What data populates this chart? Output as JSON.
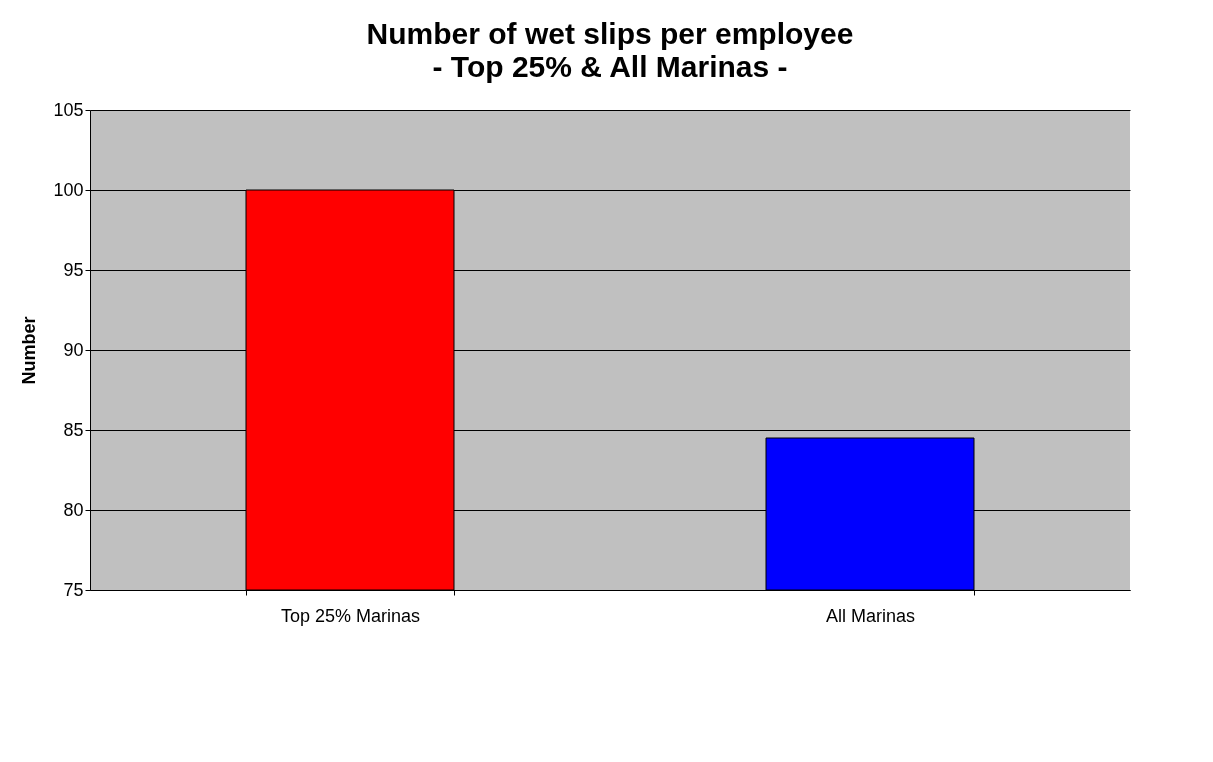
{
  "chart_data": {
    "type": "bar",
    "title": "Number of wet slips per employee",
    "subtitle": "- Top 25% & All Marinas -",
    "ylabel": "Number",
    "categories": [
      "Top 25% Marinas",
      "All Marinas"
    ],
    "values": [
      100,
      84.5
    ],
    "colors": [
      "#ff0000",
      "#0000ff"
    ],
    "ylim": [
      75,
      105
    ],
    "yticks": [
      75,
      80,
      85,
      90,
      95,
      100,
      105
    ],
    "grid": "y",
    "legend": false
  }
}
